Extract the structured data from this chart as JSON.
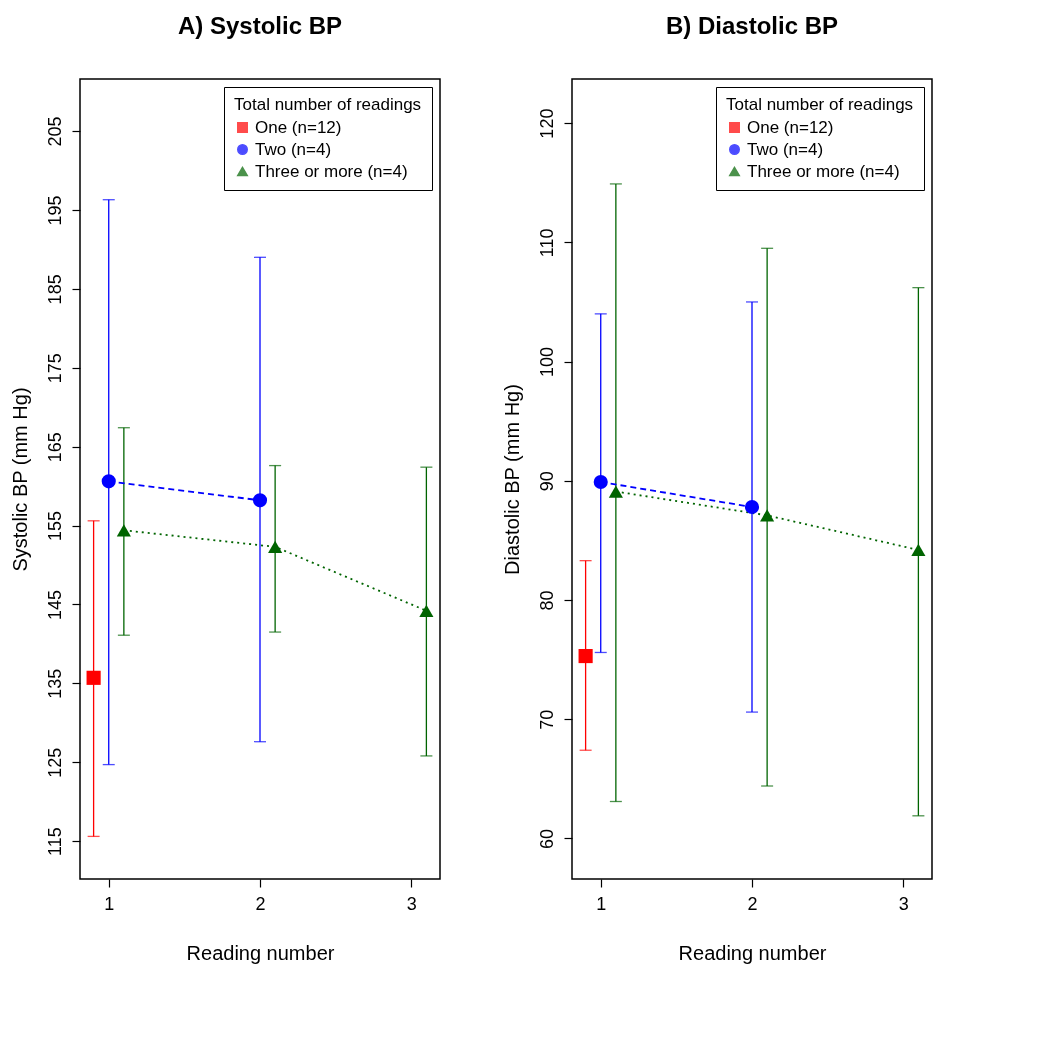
{
  "chart_data": [
    {
      "type": "line",
      "title": "A) Systolic BP",
      "xlabel": "Reading number",
      "ylabel": "Systolic BP (mm Hg)",
      "legend_title": "Total number of readings",
      "legend": "top right",
      "grid": false,
      "xlim": [
        0.81,
        3.19
      ],
      "xticks": [
        1,
        2,
        3
      ],
      "ylim": [
        110.2,
        211.6
      ],
      "yticks": [
        115,
        125,
        135,
        145,
        155,
        165,
        175,
        185,
        195,
        205
      ],
      "series": [
        {
          "name": "One (n=12)",
          "color": "#ff0000",
          "marker": "square",
          "x": [
            0.9
          ],
          "values": [
            135.7
          ],
          "errors": [
            [
              115.6,
              155.6
            ]
          ]
        },
        {
          "name": "Two (n=4)",
          "color": "#0000ff",
          "marker": "circle",
          "line_style": "dashed",
          "x": [
            1,
            2
          ],
          "values": [
            160.6,
            158.2
          ],
          "errors": [
            [
              124.7,
              196.3
            ],
            [
              127.6,
              189.0
            ]
          ]
        },
        {
          "name": "Three or more (n=4)",
          "color": "#006400",
          "marker": "triangle",
          "line_style": "dotted",
          "x": [
            1.1,
            2.1,
            3.1
          ],
          "values": [
            154.4,
            152.3,
            144.2
          ],
          "errors": [
            [
              141.1,
              167.4
            ],
            [
              141.5,
              162.6
            ],
            [
              125.8,
              162.4
            ]
          ]
        }
      ]
    },
    {
      "type": "line",
      "title": "B) Diastolic BP",
      "xlabel": "Reading number",
      "ylabel": "Diastolic BP (mm Hg)",
      "legend_title": "Total number of readings",
      "legend": "top right",
      "grid": false,
      "xlim": [
        0.81,
        3.19
      ],
      "xticks": [
        1,
        2,
        3
      ],
      "ylim": [
        56.6,
        123.7
      ],
      "yticks": [
        60,
        70,
        80,
        90,
        100,
        110,
        120
      ],
      "series": [
        {
          "name": "One (n=12)",
          "color": "#ff0000",
          "marker": "square",
          "x": [
            0.9
          ],
          "values": [
            75.3
          ],
          "errors": [
            [
              67.4,
              83.3
            ]
          ]
        },
        {
          "name": "Two (n=4)",
          "color": "#0000ff",
          "marker": "circle",
          "line_style": "dashed",
          "x": [
            1,
            2
          ],
          "values": [
            89.9,
            87.8
          ],
          "errors": [
            [
              75.6,
              104.0
            ],
            [
              70.6,
              105.0
            ]
          ]
        },
        {
          "name": "Three or more (n=4)",
          "color": "#006400",
          "marker": "triangle",
          "line_style": "dotted",
          "x": [
            1.1,
            2.1,
            3.1
          ],
          "values": [
            89.1,
            87.1,
            84.2
          ],
          "errors": [
            [
              63.1,
              114.9
            ],
            [
              64.4,
              109.5
            ],
            [
              61.9,
              106.2
            ]
          ]
        }
      ]
    }
  ]
}
